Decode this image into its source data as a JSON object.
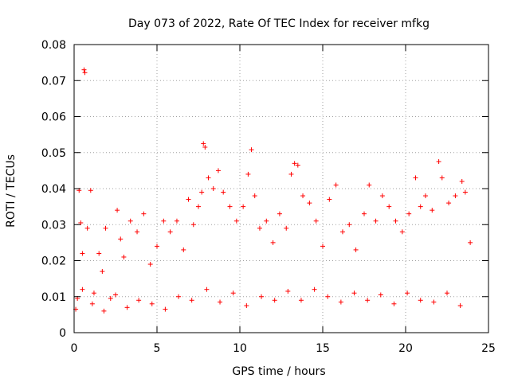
{
  "chart_data": {
    "type": "scatter",
    "title": "Day 073 of 2022, Rate Of TEC Index for receiver mfkg",
    "xlabel": "GPS time / hours",
    "ylabel": "ROTI / TECUs",
    "xlim": [
      0,
      25
    ],
    "ylim": [
      0,
      0.08
    ],
    "xticks": [
      "0",
      "5",
      "10",
      "15",
      "20",
      "25"
    ],
    "yticks": [
      "0",
      "0.01",
      "0.02",
      "0.03",
      "0.04",
      "0.05",
      "0.06",
      "0.07",
      "0.08"
    ],
    "grid": true,
    "marker": "plus",
    "color": "#ff0000",
    "x_range_observed": [
      0,
      24
    ],
    "series": [
      {
        "name": "",
        "points": [
          [
            0.1,
            0.0065
          ],
          [
            0.2,
            0.0095
          ],
          [
            0.3,
            0.0395
          ],
          [
            0.4,
            0.0305
          ],
          [
            0.5,
            0.022
          ],
          [
            0.6,
            0.073
          ],
          [
            0.65,
            0.0722
          ],
          [
            0.8,
            0.029
          ],
          [
            1.0,
            0.0395
          ],
          [
            1.2,
            0.011
          ],
          [
            1.5,
            0.022
          ],
          [
            1.7,
            0.017
          ],
          [
            1.9,
            0.029
          ],
          [
            2.2,
            0.0095
          ],
          [
            2.6,
            0.034
          ],
          [
            2.8,
            0.026
          ],
          [
            3.0,
            0.021
          ],
          [
            3.4,
            0.031
          ],
          [
            3.8,
            0.028
          ],
          [
            4.2,
            0.033
          ],
          [
            4.6,
            0.019
          ],
          [
            5.0,
            0.024
          ],
          [
            5.4,
            0.031
          ],
          [
            5.8,
            0.028
          ],
          [
            6.2,
            0.031
          ],
          [
            6.6,
            0.023
          ],
          [
            6.9,
            0.037
          ],
          [
            7.2,
            0.03
          ],
          [
            7.5,
            0.035
          ],
          [
            7.7,
            0.039
          ],
          [
            7.8,
            0.0525
          ],
          [
            7.9,
            0.0515
          ],
          [
            8.1,
            0.043
          ],
          [
            8.4,
            0.04
          ],
          [
            8.7,
            0.045
          ],
          [
            9.0,
            0.039
          ],
          [
            9.4,
            0.035
          ],
          [
            9.8,
            0.031
          ],
          [
            10.2,
            0.035
          ],
          [
            10.5,
            0.044
          ],
          [
            10.7,
            0.0508
          ],
          [
            10.9,
            0.038
          ],
          [
            11.2,
            0.029
          ],
          [
            11.6,
            0.031
          ],
          [
            12.0,
            0.025
          ],
          [
            12.4,
            0.033
          ],
          [
            12.8,
            0.029
          ],
          [
            13.1,
            0.044
          ],
          [
            13.3,
            0.047
          ],
          [
            13.5,
            0.0465
          ],
          [
            13.8,
            0.038
          ],
          [
            14.2,
            0.036
          ],
          [
            14.6,
            0.031
          ],
          [
            15.0,
            0.024
          ],
          [
            15.4,
            0.037
          ],
          [
            15.8,
            0.041
          ],
          [
            16.2,
            0.028
          ],
          [
            16.6,
            0.03
          ],
          [
            17.0,
            0.023
          ],
          [
            17.5,
            0.033
          ],
          [
            17.8,
            0.041
          ],
          [
            18.2,
            0.031
          ],
          [
            18.6,
            0.038
          ],
          [
            19.0,
            0.035
          ],
          [
            19.4,
            0.031
          ],
          [
            19.8,
            0.028
          ],
          [
            20.2,
            0.033
          ],
          [
            20.6,
            0.043
          ],
          [
            20.9,
            0.035
          ],
          [
            21.2,
            0.038
          ],
          [
            21.6,
            0.034
          ],
          [
            22.0,
            0.0475
          ],
          [
            22.2,
            0.043
          ],
          [
            22.6,
            0.036
          ],
          [
            23.0,
            0.038
          ],
          [
            23.4,
            0.042
          ],
          [
            23.6,
            0.039
          ],
          [
            23.9,
            0.025
          ],
          [
            0.5,
            0.012
          ],
          [
            1.1,
            0.008
          ],
          [
            1.8,
            0.006
          ],
          [
            2.5,
            0.0105
          ],
          [
            3.2,
            0.007
          ],
          [
            3.9,
            0.009
          ],
          [
            4.7,
            0.008
          ],
          [
            5.5,
            0.0065
          ],
          [
            6.3,
            0.01
          ],
          [
            7.1,
            0.009
          ],
          [
            8.0,
            0.012
          ],
          [
            8.8,
            0.0085
          ],
          [
            9.6,
            0.011
          ],
          [
            10.4,
            0.0075
          ],
          [
            11.3,
            0.01
          ],
          [
            12.1,
            0.009
          ],
          [
            12.9,
            0.0115
          ],
          [
            13.7,
            0.009
          ],
          [
            14.5,
            0.012
          ],
          [
            15.3,
            0.01
          ],
          [
            16.1,
            0.0085
          ],
          [
            16.9,
            0.011
          ],
          [
            17.7,
            0.009
          ],
          [
            18.5,
            0.0105
          ],
          [
            19.3,
            0.008
          ],
          [
            20.1,
            0.011
          ],
          [
            20.9,
            0.009
          ],
          [
            21.7,
            0.0085
          ],
          [
            22.5,
            0.011
          ],
          [
            23.3,
            0.0075
          ]
        ]
      }
    ]
  }
}
